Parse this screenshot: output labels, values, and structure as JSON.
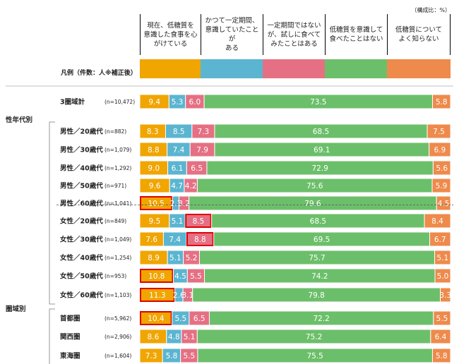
{
  "unit_note": "（構成比：%）",
  "legend_label": "凡例（件数：人※補正後）",
  "categories": [
    {
      "label": "現在、低糖質を意識した食事を心がけている",
      "lines": [
        "現在、低糖質を",
        "意識した食事を心",
        "がけている"
      ],
      "color": "#f0a500"
    },
    {
      "label": "かつて一定期間、意識していたことがある",
      "lines": [
        "かつて一定期間、",
        "意識していたことが",
        "ある"
      ],
      "color": "#5bb5d0"
    },
    {
      "label": "一定期間ではないが、試しに食べてみたことはある",
      "lines": [
        "一定期間ではない",
        "が、試しに食べて",
        "みたことはある"
      ],
      "color": "#e57083"
    },
    {
      "label": "低糖質を意識して食べたことはない",
      "lines": [
        "低糖質を意識して",
        "食べたことはない"
      ],
      "color": "#6cbf6a"
    },
    {
      "label": "低糖質についてよく知らない",
      "lines": [
        "低糖質について",
        "よく知らない"
      ],
      "color": "#ee8a4b"
    }
  ],
  "chart_data": {
    "type": "bar",
    "stacked": true,
    "orientation": "horizontal",
    "unit": "%",
    "series_names": [
      "現在、低糖質を意識した食事を心がけている",
      "かつて一定期間、意識していたことがある",
      "一定期間ではないが、試しに食べてみたことはある",
      "低糖質を意識して食べたことはない",
      "低糖質についてよく知らない"
    ],
    "groups": [
      {
        "label": "",
        "rows": [
          {
            "label": "3圏域計",
            "n": "(n=10,472)",
            "values": [
              9.4,
              5.3,
              6.0,
              73.5,
              5.8
            ],
            "highlight": []
          }
        ]
      },
      {
        "label": "性年代別",
        "rows": [
          {
            "label": "男性／20歳代",
            "n": "(n=882)",
            "values": [
              8.3,
              8.5,
              7.3,
              68.5,
              7.5
            ],
            "highlight": []
          },
          {
            "label": "男性／30歳代",
            "n": "(n=1,079)",
            "values": [
              8.8,
              7.4,
              7.9,
              69.1,
              6.9
            ],
            "highlight": []
          },
          {
            "label": "男性／40歳代",
            "n": "(n=1,292)",
            "values": [
              9.0,
              6.1,
              6.5,
              72.9,
              5.6
            ],
            "highlight": []
          },
          {
            "label": "男性／50歳代",
            "n": "(n=971)",
            "values": [
              9.6,
              4.7,
              4.2,
              75.6,
              5.9
            ],
            "highlight": []
          },
          {
            "label": "男性／60歳代",
            "n": "(n=1,041)",
            "values": [
              10.5,
              2.1,
              3.2,
              79.6,
              4.5
            ],
            "highlight": [
              0
            ]
          },
          {
            "label": "女性／20歳代",
            "n": "(n=849)",
            "values": [
              9.5,
              5.1,
              8.5,
              68.5,
              8.4
            ],
            "highlight": [
              2
            ]
          },
          {
            "label": "女性／30歳代",
            "n": "(n=1,049)",
            "values": [
              7.6,
              7.4,
              8.8,
              69.5,
              6.7
            ],
            "highlight": [
              2
            ]
          },
          {
            "label": "女性／40歳代",
            "n": "(n=1,254)",
            "values": [
              8.9,
              5.1,
              5.2,
              75.7,
              5.1
            ],
            "highlight": []
          },
          {
            "label": "女性／50歳代",
            "n": "(n=953)",
            "values": [
              10.8,
              4.5,
              5.5,
              74.2,
              5.0
            ],
            "highlight": [
              0
            ]
          },
          {
            "label": "女性／60歳代",
            "n": "(n=1,103)",
            "values": [
              11.3,
              2.6,
              3.1,
              79.8,
              3.3
            ],
            "highlight": [
              0
            ]
          }
        ]
      },
      {
        "label": "圏域別",
        "rows": [
          {
            "label": "首都圏",
            "n": "(n=5,962)",
            "values": [
              10.4,
              5.5,
              6.5,
              72.2,
              5.5
            ],
            "highlight": [
              0
            ]
          },
          {
            "label": "関西圏",
            "n": "(n=2,906)",
            "values": [
              8.6,
              4.8,
              5.1,
              75.2,
              6.4
            ],
            "highlight": []
          },
          {
            "label": "東海圏",
            "n": "(n=1,604)",
            "values": [
              7.3,
              5.8,
              5.5,
              75.5,
              5.8
            ],
            "highlight": []
          }
        ]
      }
    ],
    "xlim": [
      0,
      100
    ]
  }
}
